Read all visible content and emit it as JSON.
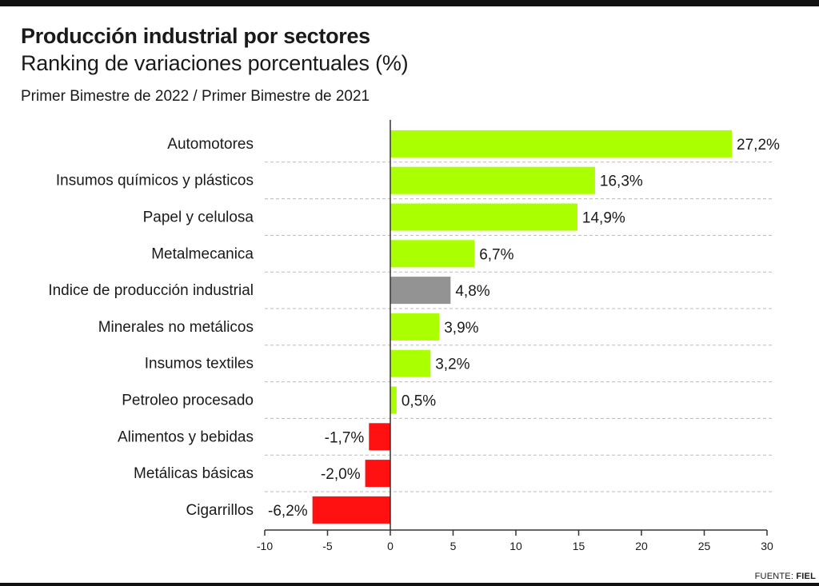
{
  "chart_data": {
    "type": "bar",
    "orientation": "horizontal",
    "title": "Producción industrial por sectores",
    "subtitle": "Ranking de variaciones porcentuales (%)",
    "period": "Primer Bimestre de 2022 / Primer Bimestre de 2021",
    "categories": [
      "Automotores",
      "Insumos químicos y plásticos",
      "Papel y celulosa",
      "Metalmecanica",
      "Indice de producción industrial",
      "Minerales no metálicos",
      "Insumos textiles",
      "Petroleo procesado",
      "Alimentos y bebidas",
      "Metálicas básicas",
      "Cigarrillos"
    ],
    "values": [
      27.2,
      16.3,
      14.9,
      6.7,
      4.8,
      3.9,
      3.2,
      0.5,
      -1.7,
      -2.0,
      -6.2
    ],
    "value_labels": [
      "27,2%",
      "16,3%",
      "14,9%",
      "6,7%",
      "4,8%",
      "3,9%",
      "3,2%",
      "0,5%",
      "-1,7%",
      "-2,0%",
      "-6,2%"
    ],
    "highlight_index": 4,
    "xlim": [
      -10,
      30
    ],
    "xticks": [
      -10,
      -5,
      0,
      5,
      10,
      15,
      20,
      25,
      30
    ],
    "xlabel": "",
    "ylabel": "",
    "grid": "dashed horizontal separators",
    "colors": {
      "positive": "#aaff00",
      "negative": "#ff1111",
      "highlight": "#939393",
      "axis": "#333333",
      "grid": "#bbbbbb"
    }
  },
  "source": {
    "label": "FUENTE:",
    "name": "FIEL"
  }
}
